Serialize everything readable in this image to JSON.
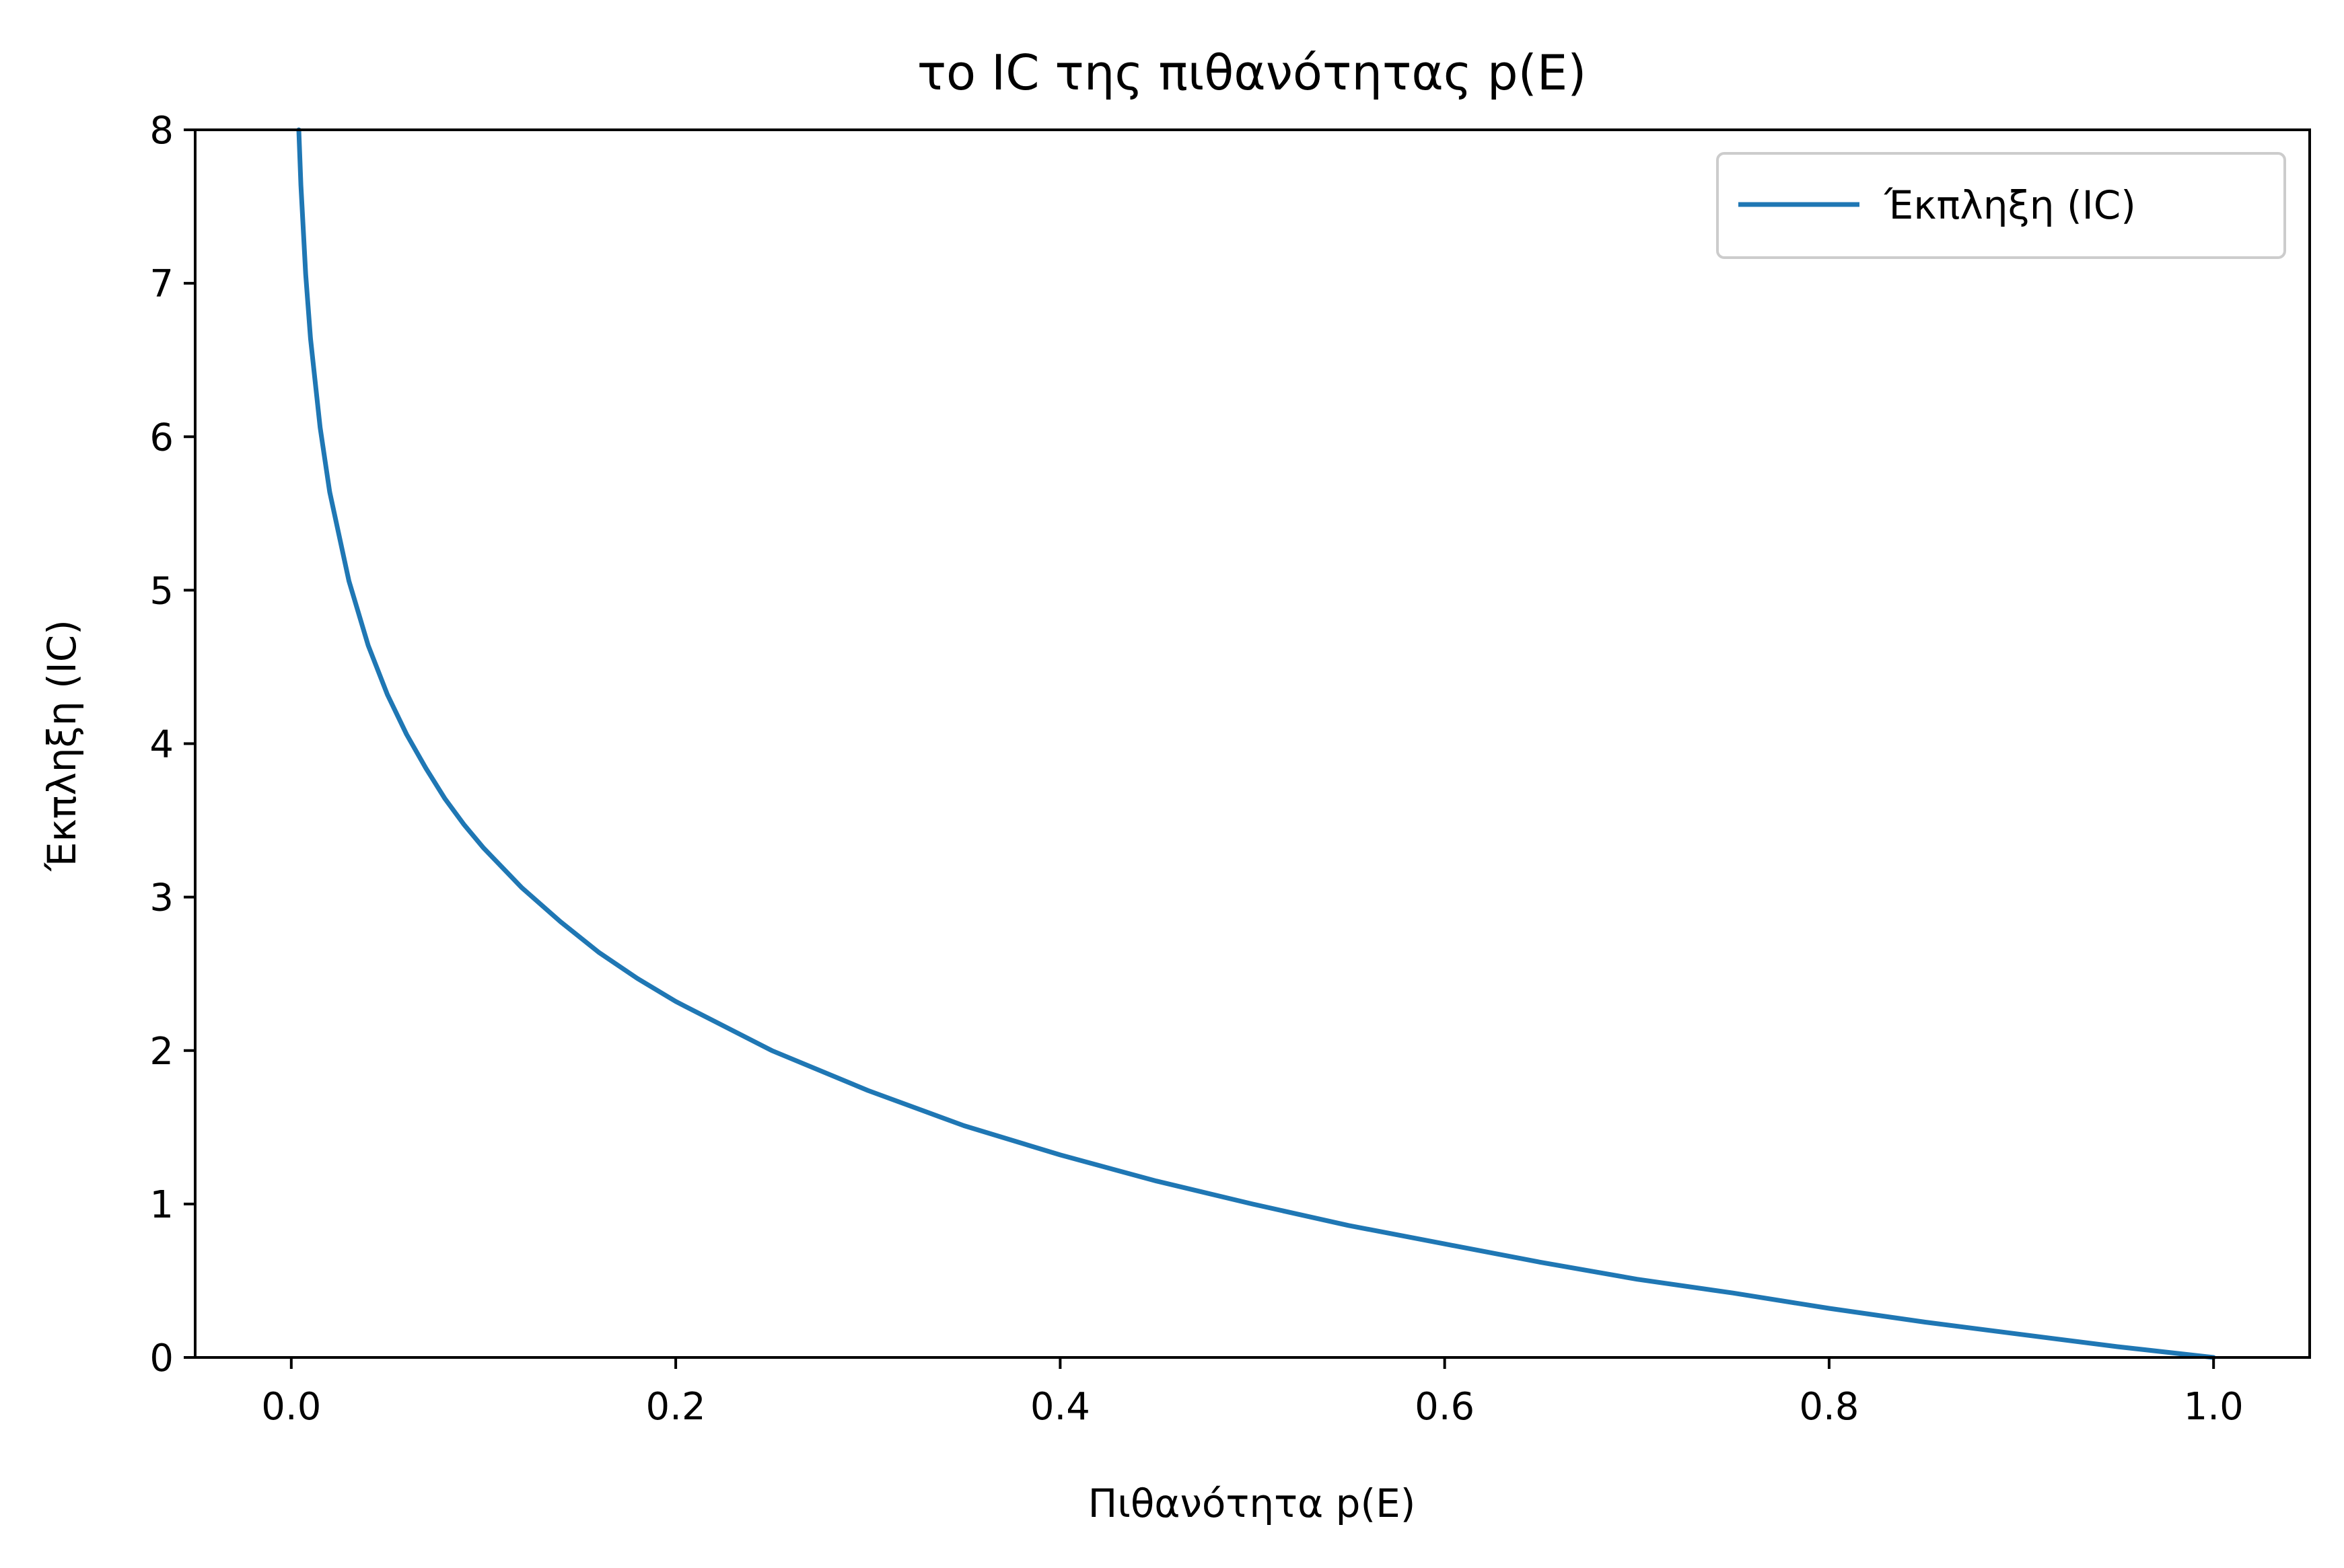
{
  "chart_data": {
    "type": "line",
    "title": "το IC της πιθανότητας p(E)",
    "xlabel": "Πιθανότητα p(E)",
    "ylabel": "Έκπληξη (IC)",
    "xlim": [
      -0.05,
      1.05
    ],
    "ylim": [
      0,
      8
    ],
    "xticks": [
      "0.0",
      "0.2",
      "0.4",
      "0.6",
      "0.8",
      "1.0"
    ],
    "yticks": [
      "0",
      "1",
      "2",
      "3",
      "4",
      "5",
      "6",
      "7",
      "8"
    ],
    "grid": false,
    "legend_position": "top-right",
    "series": [
      {
        "name": "Έκπληξη (IC)",
        "color": "#1f77b4",
        "function": "-log2(p)",
        "x": [
          0.0039,
          0.005,
          0.0075,
          0.01,
          0.015,
          0.02,
          0.03,
          0.04,
          0.05,
          0.06,
          0.07,
          0.08,
          0.09,
          0.1,
          0.12,
          0.14,
          0.16,
          0.18,
          0.2,
          0.25,
          0.3,
          0.35,
          0.4,
          0.45,
          0.5,
          0.55,
          0.6,
          0.65,
          0.7,
          0.75,
          0.8,
          0.85,
          0.9,
          0.95,
          1.0
        ],
        "y": [
          8.0,
          7.64,
          7.06,
          6.64,
          6.06,
          5.64,
          5.06,
          4.64,
          4.32,
          4.06,
          3.84,
          3.64,
          3.47,
          3.32,
          3.06,
          2.84,
          2.64,
          2.47,
          2.32,
          2.0,
          1.74,
          1.51,
          1.32,
          1.15,
          1.0,
          0.86,
          0.74,
          0.62,
          0.51,
          0.42,
          0.32,
          0.23,
          0.15,
          0.07,
          0.0
        ]
      }
    ]
  }
}
